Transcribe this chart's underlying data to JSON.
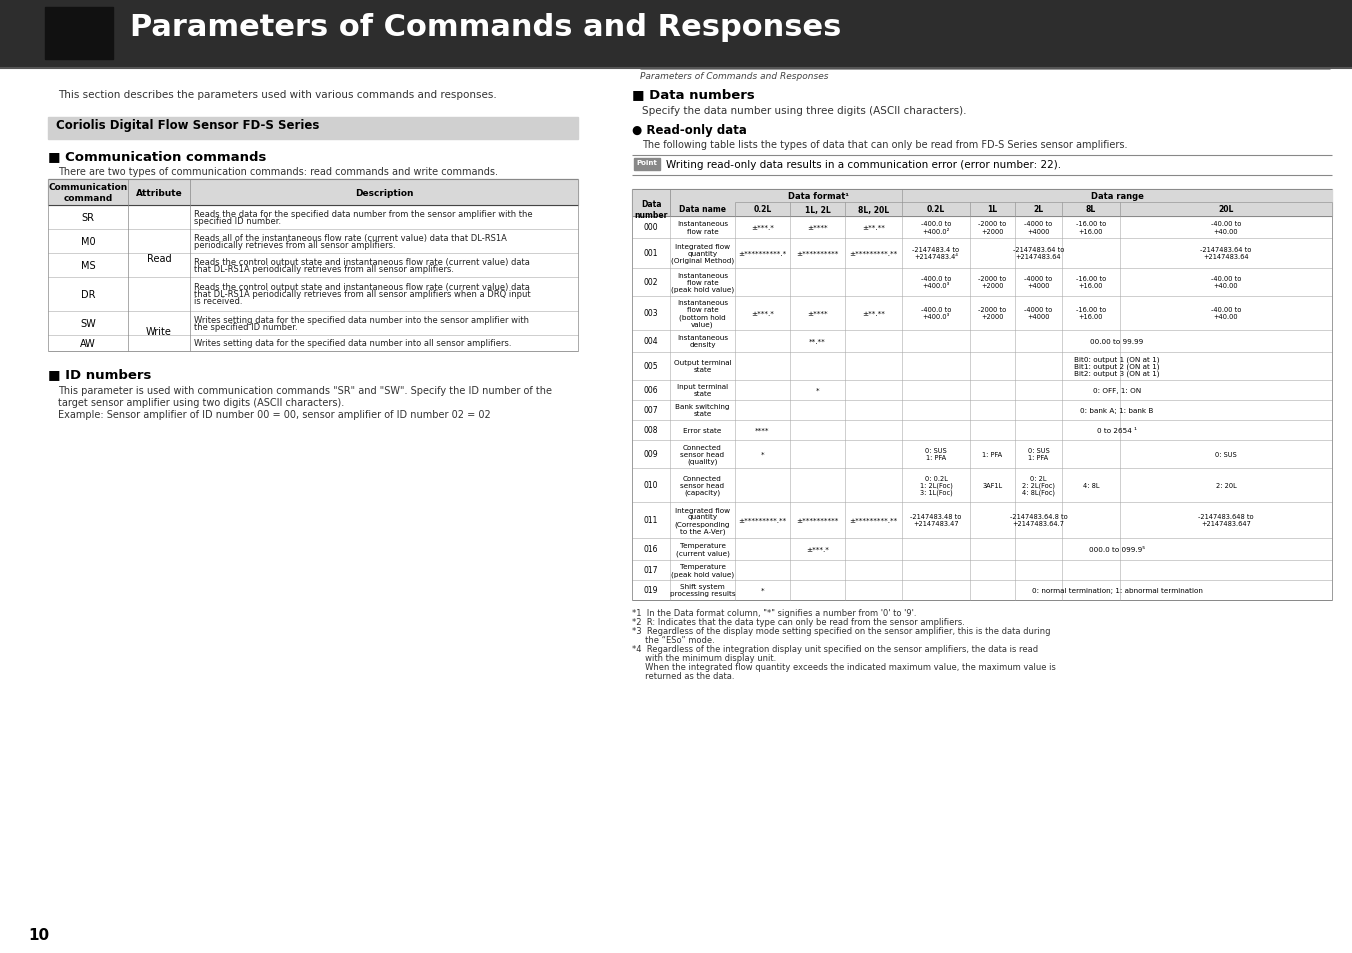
{
  "page_title": "Parameters of Commands and Responses",
  "header_right": "Parameters of Commands and Responses",
  "bg_color": "#ffffff",
  "header_bg": "#2d2d2d",
  "section_box_bg": "#d0d0d0",
  "table_header_bg": "#d8d8d8",
  "page_number": "10"
}
